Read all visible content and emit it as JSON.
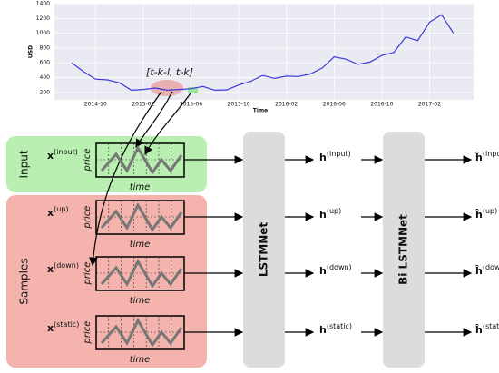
{
  "price_chart": {
    "type": "line",
    "ylabel": "USD",
    "xlabel": "Time",
    "x": [
      "2014-08",
      "2014-09",
      "2014-10",
      "2014-11",
      "2014-12",
      "2015-01",
      "2015-02",
      "2015-03",
      "2015-04",
      "2015-05",
      "2015-06",
      "2015-07",
      "2015-08",
      "2015-09",
      "2015-10",
      "2015-11",
      "2015-12",
      "2016-01",
      "2016-02",
      "2016-03",
      "2016-04",
      "2016-05",
      "2016-06",
      "2016-07",
      "2016-08",
      "2016-09",
      "2016-10",
      "2016-11",
      "2016-12",
      "2017-01",
      "2017-02",
      "2017-03",
      "2017-04"
    ],
    "values": [
      600,
      480,
      380,
      370,
      330,
      230,
      240,
      260,
      230,
      240,
      250,
      280,
      230,
      235,
      300,
      350,
      430,
      390,
      420,
      415,
      450,
      530,
      680,
      650,
      580,
      610,
      700,
      740,
      950,
      900,
      1150,
      1250,
      1000
    ],
    "color": "#3a3adb",
    "ylim": [
      100,
      1400
    ],
    "yticks": [
      200,
      400,
      600,
      800,
      1000,
      1200,
      1400
    ],
    "xticks": [
      "2014-10",
      "2015-02",
      "2015-06",
      "2015-10",
      "2016-02",
      "2016-06",
      "2016-10",
      "2017-02"
    ],
    "annotation": "[t-k-l, t-k]"
  },
  "groups": {
    "input": "Input",
    "samples": "Samples"
  },
  "plot_labels": {
    "y": "price",
    "x": "time"
  },
  "modules": [
    "LSTMNet",
    "Bi LSTMNet"
  ],
  "rows": [
    {
      "x": "x",
      "x_sup": "(input)",
      "h": "h",
      "h_sup": "(input)",
      "hh": "ĥ",
      "hh_sup": "(input)"
    },
    {
      "x": "x",
      "x_sup": "(up)",
      "h": "h",
      "h_sup": "(up)",
      "hh": "ĥ",
      "hh_sup": "(up)"
    },
    {
      "x": "x",
      "x_sup": "(down)",
      "h": "h",
      "h_sup": "(down)",
      "hh": "ĥ",
      "hh_sup": "(down)"
    },
    {
      "x": "x",
      "x_sup": "(static)",
      "h": "h",
      "h_sup": "(static)",
      "hh": "ĥ",
      "hh_sup": "(static)"
    }
  ]
}
